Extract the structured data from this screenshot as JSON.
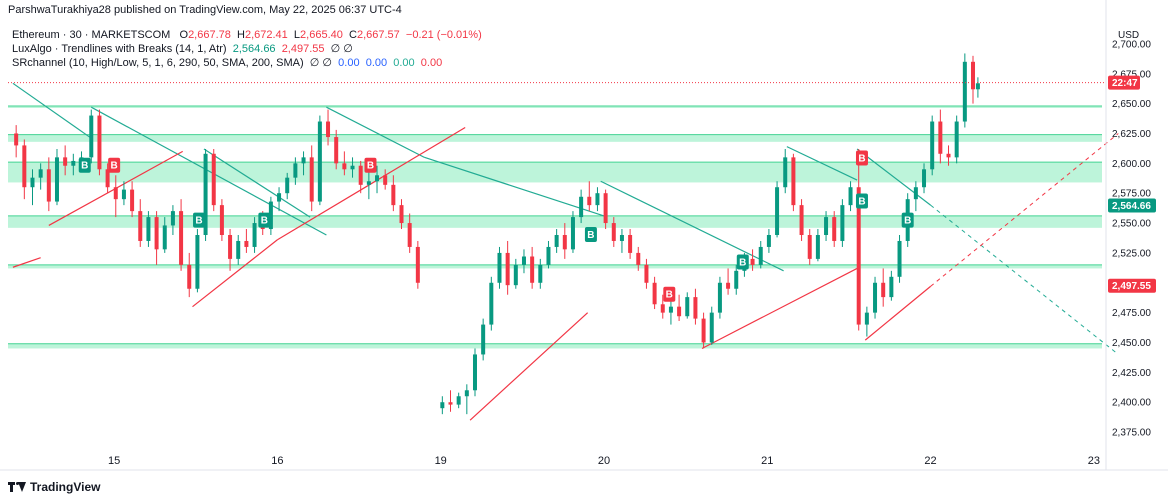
{
  "header": {
    "published": "ParshwaTurakhiya28 published on TradingView.com, May 22, 2025 06:37 UTC-4"
  },
  "legend": {
    "symbol": "Ethereum · 30 · MARKETSCOM",
    "o_label": "O",
    "o_value": "2,667.78",
    "h_label": "H",
    "h_value": "2,672.41",
    "l_label": "L",
    "l_value": "2,665.40",
    "c_label": "C",
    "c_value": "2,667.57",
    "change": "−0.21 (−0.01%)",
    "ind1_name": "LuxAlgo · Trendlines with Breaks (14, 1, Atr)",
    "ind1_v1": "2,564.66",
    "ind1_v2": "2,497.55",
    "ind1_phi": "∅ ∅",
    "ind2_name": "SRchannel (10, High/Low, 5, 1, 6, 290, 50, SMA, 200, SMA)",
    "ind2_phi": "∅ ∅",
    "ind2_v1": "0.00",
    "ind2_v2": "0.00",
    "ind2_v3": "0.00",
    "ind2_v4": "0.00"
  },
  "footer": {
    "brand": "TradingView"
  },
  "axis": {
    "currency": "USD"
  },
  "markers": {
    "current_time": "22:47",
    "price_a": "2,564.66",
    "price_b": "2,497.55"
  },
  "colors": {
    "up": "#089981",
    "down": "#f23645",
    "zone": "#b2f2d4",
    "zone_edge": "#42d392",
    "trend_down": "#22ab94",
    "trend_up": "#f23645",
    "badge_red": "#f23645",
    "badge_green": "#089981"
  },
  "chart_data": {
    "type": "candlestick",
    "title": "Ethereum · 30 · MARKETSCOM",
    "y_axis_unit": "USD",
    "ylim": [
      2360,
      2720
    ],
    "y_ticks": [
      "2,375.00",
      "2,400.00",
      "2,425.00",
      "2,450.00",
      "2,475.00",
      "2,500.00",
      "2,525.00",
      "2,550.00",
      "2,575.00",
      "2,600.00",
      "2,625.00",
      "2,650.00",
      "2,675.00",
      "2,700.00"
    ],
    "y_tick_values": [
      2375,
      2400,
      2425,
      2450,
      2475,
      2500,
      2525,
      2550,
      2575,
      2600,
      2625,
      2650,
      2675,
      2700
    ],
    "x_ticks": [
      "15",
      "16",
      "19",
      "20",
      "21",
      "22",
      "23"
    ],
    "x_tick_positions": [
      1.0,
      2.0,
      3.0,
      4.0,
      5.0,
      6.0,
      7.0
    ],
    "x_range": [
      0.35,
      7.05
    ],
    "current_price": 2667.57,
    "support_resistance_zones": [
      {
        "low": 2618,
        "high": 2624
      },
      {
        "low": 2584,
        "high": 2601
      },
      {
        "low": 2546,
        "high": 2556
      },
      {
        "low": 2512,
        "high": 2515
      },
      {
        "low": 2445,
        "high": 2449
      },
      {
        "low": 2647,
        "high": 2648
      }
    ],
    "trendlines_down": [
      {
        "x1": 0.38,
        "y1": 2667,
        "x2": 0.85,
        "y2": 2622
      },
      {
        "x1": 0.86,
        "y1": 2647,
        "x2": 2.3,
        "y2": 2540
      },
      {
        "x1": 1.55,
        "y1": 2612,
        "x2": 2.2,
        "y2": 2555
      },
      {
        "x1": 2.3,
        "y1": 2647,
        "x2": 2.9,
        "y2": 2605
      },
      {
        "x1": 2.9,
        "y1": 2605,
        "x2": 4.0,
        "y2": 2556
      },
      {
        "x1": 3.98,
        "y1": 2585,
        "x2": 5.1,
        "y2": 2510
      },
      {
        "x1": 5.12,
        "y1": 2614,
        "x2": 5.55,
        "y2": 2586
      },
      {
        "x1": 5.55,
        "y1": 2612,
        "x2": 6.0,
        "y2": 2565
      }
    ],
    "trendlines_down_projected": [
      {
        "x1": 6.0,
        "y1": 2565,
        "x2": 7.15,
        "y2": 2440
      }
    ],
    "trendlines_up": [
      {
        "x1": 0.38,
        "y1": 2513,
        "x2": 0.55,
        "y2": 2521
      },
      {
        "x1": 0.6,
        "y1": 2548,
        "x2": 1.42,
        "y2": 2610
      },
      {
        "x1": 1.48,
        "y1": 2480,
        "x2": 2.0,
        "y2": 2536
      },
      {
        "x1": 2.0,
        "y1": 2536,
        "x2": 3.15,
        "y2": 2630
      },
      {
        "x1": 3.18,
        "y1": 2385,
        "x2": 3.9,
        "y2": 2475
      },
      {
        "x1": 4.6,
        "y1": 2445,
        "x2": 5.55,
        "y2": 2512
      },
      {
        "x1": 5.6,
        "y1": 2452,
        "x2": 6.0,
        "y2": 2497
      }
    ],
    "trendlines_up_projected": [
      {
        "x1": 6.0,
        "y1": 2497,
        "x2": 7.15,
        "y2": 2625
      }
    ],
    "break_badges": [
      {
        "x": 0.82,
        "y": 2598,
        "label": "B",
        "kind": "up"
      },
      {
        "x": 1.0,
        "y": 2598,
        "label": "B",
        "kind": "down"
      },
      {
        "x": 1.52,
        "y": 2552,
        "label": "B",
        "kind": "up"
      },
      {
        "x": 1.92,
        "y": 2552,
        "label": "B",
        "kind": "up"
      },
      {
        "x": 2.57,
        "y": 2598,
        "label": "B",
        "kind": "down"
      },
      {
        "x": 3.92,
        "y": 2540,
        "label": "B",
        "kind": "up"
      },
      {
        "x": 4.4,
        "y": 2490,
        "label": "B",
        "kind": "down"
      },
      {
        "x": 4.85,
        "y": 2517,
        "label": "B",
        "kind": "up"
      },
      {
        "x": 5.58,
        "y": 2604,
        "label": "B",
        "kind": "down"
      },
      {
        "x": 5.58,
        "y": 2568,
        "label": "B",
        "kind": "up"
      },
      {
        "x": 5.86,
        "y": 2552,
        "label": "B",
        "kind": "up"
      }
    ],
    "close_series": [
      {
        "x": 0.4,
        "o": 2625,
        "h": 2632,
        "l": 2605,
        "c": 2615
      },
      {
        "x": 0.45,
        "o": 2615,
        "h": 2620,
        "l": 2570,
        "c": 2580
      },
      {
        "x": 0.5,
        "o": 2580,
        "h": 2595,
        "l": 2565,
        "c": 2588
      },
      {
        "x": 0.55,
        "o": 2588,
        "h": 2600,
        "l": 2578,
        "c": 2595
      },
      {
        "x": 0.6,
        "o": 2595,
        "h": 2605,
        "l": 2560,
        "c": 2568
      },
      {
        "x": 0.65,
        "o": 2568,
        "h": 2612,
        "l": 2565,
        "c": 2605
      },
      {
        "x": 0.7,
        "o": 2605,
        "h": 2615,
        "l": 2590,
        "c": 2598
      },
      {
        "x": 0.75,
        "o": 2598,
        "h": 2608,
        "l": 2590,
        "c": 2602
      },
      {
        "x": 0.8,
        "o": 2602,
        "h": 2610,
        "l": 2595,
        "c": 2605
      },
      {
        "x": 0.86,
        "o": 2605,
        "h": 2645,
        "l": 2600,
        "c": 2640
      },
      {
        "x": 0.91,
        "o": 2640,
        "h": 2645,
        "l": 2590,
        "c": 2595
      },
      {
        "x": 0.96,
        "o": 2595,
        "h": 2600,
        "l": 2575,
        "c": 2580
      },
      {
        "x": 1.01,
        "o": 2580,
        "h": 2590,
        "l": 2555,
        "c": 2570
      },
      {
        "x": 1.06,
        "o": 2570,
        "h": 2585,
        "l": 2565,
        "c": 2578
      },
      {
        "x": 1.11,
        "o": 2578,
        "h": 2585,
        "l": 2555,
        "c": 2560
      },
      {
        "x": 1.16,
        "o": 2560,
        "h": 2570,
        "l": 2530,
        "c": 2535
      },
      {
        "x": 1.21,
        "o": 2535,
        "h": 2560,
        "l": 2530,
        "c": 2555
      },
      {
        "x": 1.26,
        "o": 2555,
        "h": 2560,
        "l": 2515,
        "c": 2528
      },
      {
        "x": 1.31,
        "o": 2528,
        "h": 2555,
        "l": 2525,
        "c": 2548
      },
      {
        "x": 1.36,
        "o": 2548,
        "h": 2565,
        "l": 2540,
        "c": 2560
      },
      {
        "x": 1.41,
        "o": 2560,
        "h": 2570,
        "l": 2510,
        "c": 2515
      },
      {
        "x": 1.46,
        "o": 2515,
        "h": 2525,
        "l": 2488,
        "c": 2495
      },
      {
        "x": 1.51,
        "o": 2495,
        "h": 2545,
        "l": 2492,
        "c": 2540
      },
      {
        "x": 1.56,
        "o": 2540,
        "h": 2612,
        "l": 2535,
        "c": 2608
      },
      {
        "x": 1.61,
        "o": 2608,
        "h": 2612,
        "l": 2560,
        "c": 2565
      },
      {
        "x": 1.66,
        "o": 2565,
        "h": 2570,
        "l": 2535,
        "c": 2540
      },
      {
        "x": 1.71,
        "o": 2540,
        "h": 2545,
        "l": 2510,
        "c": 2520
      },
      {
        "x": 1.76,
        "o": 2520,
        "h": 2540,
        "l": 2515,
        "c": 2535
      },
      {
        "x": 1.81,
        "o": 2535,
        "h": 2545,
        "l": 2525,
        "c": 2530
      },
      {
        "x": 1.86,
        "o": 2530,
        "h": 2555,
        "l": 2525,
        "c": 2550
      },
      {
        "x": 1.91,
        "o": 2550,
        "h": 2560,
        "l": 2540,
        "c": 2545
      },
      {
        "x": 1.96,
        "o": 2545,
        "h": 2572,
        "l": 2540,
        "c": 2568
      },
      {
        "x": 2.01,
        "o": 2568,
        "h": 2580,
        "l": 2560,
        "c": 2575
      },
      {
        "x": 2.06,
        "o": 2575,
        "h": 2592,
        "l": 2570,
        "c": 2588
      },
      {
        "x": 2.11,
        "o": 2588,
        "h": 2605,
        "l": 2582,
        "c": 2600
      },
      {
        "x": 2.16,
        "o": 2600,
        "h": 2610,
        "l": 2590,
        "c": 2605
      },
      {
        "x": 2.21,
        "o": 2605,
        "h": 2615,
        "l": 2560,
        "c": 2568
      },
      {
        "x": 2.26,
        "o": 2568,
        "h": 2640,
        "l": 2565,
        "c": 2635
      },
      {
        "x": 2.31,
        "o": 2635,
        "h": 2645,
        "l": 2615,
        "c": 2622
      },
      {
        "x": 2.36,
        "o": 2622,
        "h": 2628,
        "l": 2595,
        "c": 2600
      },
      {
        "x": 2.41,
        "o": 2600,
        "h": 2610,
        "l": 2590,
        "c": 2595
      },
      {
        "x": 2.46,
        "o": 2595,
        "h": 2605,
        "l": 2588,
        "c": 2598
      },
      {
        "x": 2.51,
        "o": 2598,
        "h": 2602,
        "l": 2575,
        "c": 2582
      },
      {
        "x": 2.56,
        "o": 2582,
        "h": 2600,
        "l": 2570,
        "c": 2585
      },
      {
        "x": 2.61,
        "o": 2585,
        "h": 2598,
        "l": 2575,
        "c": 2590
      },
      {
        "x": 2.66,
        "o": 2590,
        "h": 2595,
        "l": 2578,
        "c": 2582
      },
      {
        "x": 2.71,
        "o": 2582,
        "h": 2590,
        "l": 2560,
        "c": 2565
      },
      {
        "x": 2.76,
        "o": 2565,
        "h": 2570,
        "l": 2545,
        "c": 2550
      },
      {
        "x": 2.81,
        "o": 2550,
        "h": 2558,
        "l": 2525,
        "c": 2530
      },
      {
        "x": 2.86,
        "o": 2530,
        "h": 2535,
        "l": 2495,
        "c": 2500
      },
      {
        "x": 3.01,
        "o": 2395,
        "h": 2405,
        "l": 2390,
        "c": 2400
      },
      {
        "x": 3.06,
        "o": 2400,
        "h": 2410,
        "l": 2392,
        "c": 2398
      },
      {
        "x": 3.11,
        "o": 2398,
        "h": 2408,
        "l": 2395,
        "c": 2405
      },
      {
        "x": 3.16,
        "o": 2405,
        "h": 2415,
        "l": 2390,
        "c": 2410
      },
      {
        "x": 3.21,
        "o": 2410,
        "h": 2445,
        "l": 2405,
        "c": 2440
      },
      {
        "x": 3.26,
        "o": 2440,
        "h": 2470,
        "l": 2435,
        "c": 2465
      },
      {
        "x": 3.31,
        "o": 2465,
        "h": 2505,
        "l": 2460,
        "c": 2500
      },
      {
        "x": 3.36,
        "o": 2500,
        "h": 2530,
        "l": 2495,
        "c": 2525
      },
      {
        "x": 3.41,
        "o": 2525,
        "h": 2535,
        "l": 2490,
        "c": 2498
      },
      {
        "x": 3.46,
        "o": 2498,
        "h": 2520,
        "l": 2495,
        "c": 2515
      },
      {
        "x": 3.51,
        "o": 2515,
        "h": 2528,
        "l": 2508,
        "c": 2522
      },
      {
        "x": 3.56,
        "o": 2522,
        "h": 2530,
        "l": 2495,
        "c": 2500
      },
      {
        "x": 3.61,
        "o": 2500,
        "h": 2520,
        "l": 2495,
        "c": 2515
      },
      {
        "x": 3.66,
        "o": 2515,
        "h": 2535,
        "l": 2512,
        "c": 2530
      },
      {
        "x": 3.71,
        "o": 2530,
        "h": 2545,
        "l": 2525,
        "c": 2540
      },
      {
        "x": 3.76,
        "o": 2540,
        "h": 2550,
        "l": 2520,
        "c": 2528
      },
      {
        "x": 3.81,
        "o": 2528,
        "h": 2560,
        "l": 2525,
        "c": 2555
      },
      {
        "x": 3.86,
        "o": 2555,
        "h": 2578,
        "l": 2550,
        "c": 2572
      },
      {
        "x": 3.91,
        "o": 2572,
        "h": 2585,
        "l": 2560,
        "c": 2565
      },
      {
        "x": 3.96,
        "o": 2565,
        "h": 2580,
        "l": 2560,
        "c": 2575
      },
      {
        "x": 4.01,
        "o": 2575,
        "h": 2578,
        "l": 2545,
        "c": 2550
      },
      {
        "x": 4.06,
        "o": 2550,
        "h": 2555,
        "l": 2530,
        "c": 2535
      },
      {
        "x": 4.11,
        "o": 2535,
        "h": 2545,
        "l": 2525,
        "c": 2540
      },
      {
        "x": 4.16,
        "o": 2540,
        "h": 2545,
        "l": 2520,
        "c": 2525
      },
      {
        "x": 4.21,
        "o": 2525,
        "h": 2530,
        "l": 2510,
        "c": 2515
      },
      {
        "x": 4.26,
        "o": 2515,
        "h": 2520,
        "l": 2495,
        "c": 2500
      },
      {
        "x": 4.31,
        "o": 2500,
        "h": 2505,
        "l": 2478,
        "c": 2482
      },
      {
        "x": 4.36,
        "o": 2482,
        "h": 2490,
        "l": 2470,
        "c": 2475
      },
      {
        "x": 4.41,
        "o": 2475,
        "h": 2485,
        "l": 2465,
        "c": 2480
      },
      {
        "x": 4.46,
        "o": 2480,
        "h": 2490,
        "l": 2468,
        "c": 2472
      },
      {
        "x": 4.51,
        "o": 2472,
        "h": 2492,
        "l": 2470,
        "c": 2488
      },
      {
        "x": 4.56,
        "o": 2488,
        "h": 2495,
        "l": 2465,
        "c": 2470
      },
      {
        "x": 4.61,
        "o": 2470,
        "h": 2475,
        "l": 2445,
        "c": 2450
      },
      {
        "x": 4.66,
        "o": 2450,
        "h": 2480,
        "l": 2448,
        "c": 2475
      },
      {
        "x": 4.71,
        "o": 2475,
        "h": 2505,
        "l": 2470,
        "c": 2500
      },
      {
        "x": 4.76,
        "o": 2500,
        "h": 2512,
        "l": 2490,
        "c": 2495
      },
      {
        "x": 4.81,
        "o": 2495,
        "h": 2515,
        "l": 2490,
        "c": 2510
      },
      {
        "x": 4.86,
        "o": 2510,
        "h": 2525,
        "l": 2505,
        "c": 2520
      },
      {
        "x": 4.91,
        "o": 2520,
        "h": 2528,
        "l": 2510,
        "c": 2515
      },
      {
        "x": 4.96,
        "o": 2515,
        "h": 2535,
        "l": 2512,
        "c": 2530
      },
      {
        "x": 5.01,
        "o": 2530,
        "h": 2545,
        "l": 2525,
        "c": 2540
      },
      {
        "x": 5.06,
        "o": 2540,
        "h": 2585,
        "l": 2538,
        "c": 2580
      },
      {
        "x": 5.11,
        "o": 2580,
        "h": 2612,
        "l": 2575,
        "c": 2605
      },
      {
        "x": 5.16,
        "o": 2605,
        "h": 2608,
        "l": 2560,
        "c": 2565
      },
      {
        "x": 5.21,
        "o": 2565,
        "h": 2570,
        "l": 2535,
        "c": 2540
      },
      {
        "x": 5.26,
        "o": 2540,
        "h": 2545,
        "l": 2515,
        "c": 2520
      },
      {
        "x": 5.31,
        "o": 2520,
        "h": 2545,
        "l": 2518,
        "c": 2540
      },
      {
        "x": 5.36,
        "o": 2540,
        "h": 2560,
        "l": 2535,
        "c": 2555
      },
      {
        "x": 5.41,
        "o": 2555,
        "h": 2560,
        "l": 2530,
        "c": 2535
      },
      {
        "x": 5.46,
        "o": 2535,
        "h": 2570,
        "l": 2530,
        "c": 2565
      },
      {
        "x": 5.51,
        "o": 2565,
        "h": 2585,
        "l": 2560,
        "c": 2580
      },
      {
        "x": 5.56,
        "o": 2580,
        "h": 2612,
        "l": 2460,
        "c": 2465
      },
      {
        "x": 5.61,
        "o": 2465,
        "h": 2480,
        "l": 2455,
        "c": 2475
      },
      {
        "x": 5.66,
        "o": 2475,
        "h": 2505,
        "l": 2470,
        "c": 2500
      },
      {
        "x": 5.71,
        "o": 2500,
        "h": 2512,
        "l": 2480,
        "c": 2488
      },
      {
        "x": 5.76,
        "o": 2488,
        "h": 2510,
        "l": 2485,
        "c": 2505
      },
      {
        "x": 5.81,
        "o": 2505,
        "h": 2540,
        "l": 2500,
        "c": 2535
      },
      {
        "x": 5.86,
        "o": 2535,
        "h": 2575,
        "l": 2530,
        "c": 2570
      },
      {
        "x": 5.91,
        "o": 2570,
        "h": 2585,
        "l": 2560,
        "c": 2580
      },
      {
        "x": 5.96,
        "o": 2580,
        "h": 2600,
        "l": 2575,
        "c": 2595
      },
      {
        "x": 6.01,
        "o": 2595,
        "h": 2640,
        "l": 2590,
        "c": 2635
      },
      {
        "x": 6.06,
        "o": 2635,
        "h": 2645,
        "l": 2600,
        "c": 2608
      },
      {
        "x": 6.11,
        "o": 2608,
        "h": 2615,
        "l": 2598,
        "c": 2605
      },
      {
        "x": 6.16,
        "o": 2605,
        "h": 2640,
        "l": 2600,
        "c": 2635
      },
      {
        "x": 6.21,
        "o": 2635,
        "h": 2692,
        "l": 2630,
        "c": 2685
      },
      {
        "x": 6.26,
        "o": 2685,
        "h": 2690,
        "l": 2650,
        "c": 2662
      },
      {
        "x": 6.29,
        "o": 2662,
        "h": 2672,
        "l": 2655,
        "c": 2667
      }
    ]
  }
}
